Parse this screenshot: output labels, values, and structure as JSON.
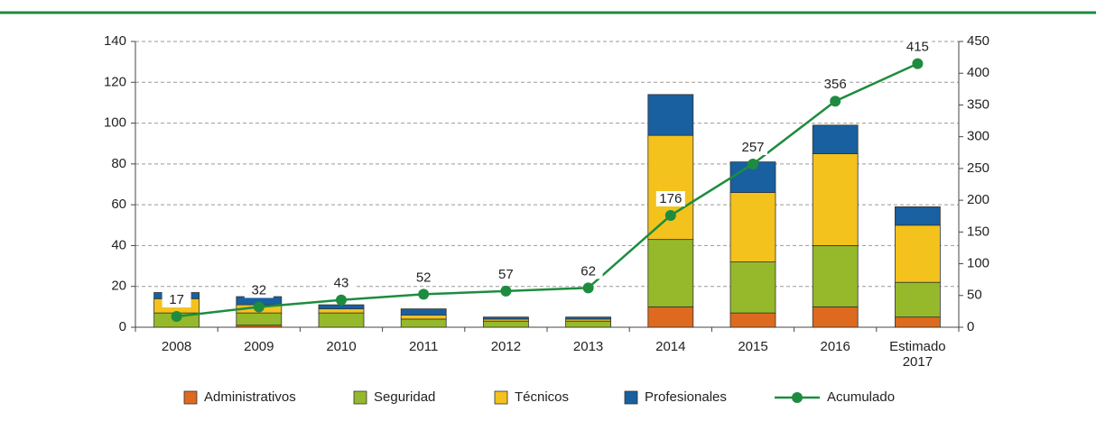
{
  "chart_data": {
    "type": "bar",
    "stacked": true,
    "categories": [
      "2008",
      "2009",
      "2010",
      "2011",
      "2012",
      "2013",
      "2014",
      "2015",
      "2016",
      "Estimado 2017"
    ],
    "series": [
      {
        "name": "Administrativos",
        "color": "#dd6a1f",
        "values": [
          0,
          1,
          0,
          0,
          0,
          0,
          10,
          7,
          10,
          5
        ]
      },
      {
        "name": "Seguridad",
        "color": "#95b92b",
        "values": [
          7,
          6,
          7,
          4,
          3,
          3,
          33,
          25,
          30,
          17
        ]
      },
      {
        "name": "Técnicos",
        "color": "#f3c21c",
        "values": [
          7,
          4,
          2,
          2,
          1,
          1,
          51,
          34,
          45,
          28
        ]
      },
      {
        "name": "Profesionales",
        "color": "#18609f",
        "values": [
          3,
          4,
          2,
          3,
          1,
          1,
          20,
          15,
          14,
          9
        ]
      },
      {
        "name": "Acumulado",
        "color": "#1d8c3f",
        "type": "line",
        "axis": "y2",
        "values": [
          17,
          32,
          43,
          52,
          57,
          62,
          176,
          257,
          356,
          415
        ]
      }
    ],
    "ylim": [
      0,
      140
    ],
    "yticks": [
      0,
      20,
      40,
      60,
      80,
      100,
      120,
      140
    ],
    "y2lim": [
      0,
      450
    ],
    "y2ticks": [
      0,
      50,
      100,
      150,
      200,
      250,
      300,
      350,
      400,
      450
    ],
    "grid": true,
    "legend": "bottom"
  }
}
